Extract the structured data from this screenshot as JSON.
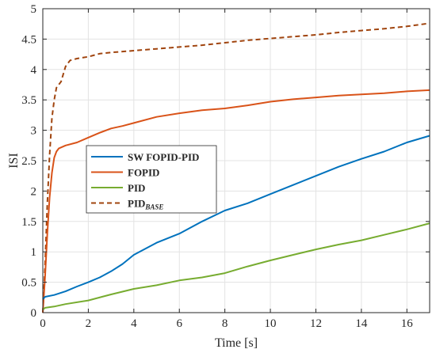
{
  "chart_data": {
    "type": "line",
    "title": "",
    "xlabel": "Time [s]",
    "ylabel": "ISI",
    "xlim": [
      0,
      17
    ],
    "ylim": [
      0,
      5
    ],
    "xticks": [
      0,
      2,
      4,
      6,
      8,
      10,
      12,
      14,
      16
    ],
    "yticks": [
      0,
      0.5,
      1,
      1.5,
      2,
      2.5,
      3,
      3.5,
      4,
      4.5,
      5
    ],
    "xtick_labels": [
      "0",
      "2",
      "4",
      "6",
      "8",
      "10",
      "12",
      "14",
      "16"
    ],
    "ytick_labels": [
      "0",
      "0.5",
      "1",
      "1.5",
      "2",
      "2.5",
      "3",
      "3.5",
      "4",
      "4.5",
      "5"
    ],
    "grid": true,
    "legend_position": "center-left",
    "series": [
      {
        "name": "SW FOPID-PID",
        "color": "#0072BD",
        "dash": "solid",
        "x": [
          0,
          0.1,
          0.5,
          1,
          1.5,
          2,
          2.5,
          3,
          3.5,
          4,
          5,
          6,
          7,
          8,
          9,
          10,
          11,
          12,
          13,
          14,
          15,
          16,
          17
        ],
        "y": [
          0.22,
          0.26,
          0.29,
          0.35,
          0.43,
          0.5,
          0.58,
          0.68,
          0.8,
          0.95,
          1.15,
          1.3,
          1.5,
          1.68,
          1.8,
          1.95,
          2.1,
          2.25,
          2.4,
          2.53,
          2.65,
          2.8,
          2.91
        ]
      },
      {
        "name": "FOPID",
        "color": "#D95319",
        "dash": "solid",
        "x": [
          0,
          0.1,
          0.2,
          0.3,
          0.4,
          0.5,
          0.6,
          0.7,
          1,
          1.5,
          2,
          2.5,
          3,
          3.5,
          4,
          5,
          6,
          7,
          8,
          9,
          10,
          11,
          12,
          13,
          14,
          15,
          16,
          17
        ],
        "y": [
          0,
          0.6,
          1.3,
          1.9,
          2.3,
          2.55,
          2.65,
          2.7,
          2.75,
          2.8,
          2.88,
          2.96,
          3.03,
          3.07,
          3.12,
          3.22,
          3.28,
          3.33,
          3.36,
          3.41,
          3.47,
          3.51,
          3.54,
          3.57,
          3.59,
          3.61,
          3.64,
          3.66
        ]
      },
      {
        "name": "PID",
        "color": "#77AC30",
        "dash": "solid",
        "x": [
          0,
          0.1,
          0.5,
          1,
          2,
          3,
          4,
          5,
          6,
          7,
          8,
          9,
          10,
          11,
          12,
          13,
          14,
          15,
          16,
          17
        ],
        "y": [
          0.05,
          0.08,
          0.1,
          0.14,
          0.2,
          0.3,
          0.39,
          0.45,
          0.53,
          0.58,
          0.65,
          0.76,
          0.86,
          0.95,
          1.04,
          1.12,
          1.19,
          1.28,
          1.37,
          1.47
        ]
      },
      {
        "name": "PID",
        "name_sub": "BASE",
        "color": "#A0440E",
        "dash": "dashed",
        "x": [
          0,
          0.1,
          0.2,
          0.3,
          0.4,
          0.5,
          0.6,
          0.8,
          1,
          1.2,
          1.5,
          2,
          2.5,
          3,
          4,
          5,
          6,
          7,
          8,
          9,
          10,
          11,
          12,
          13,
          14,
          15,
          16,
          17
        ],
        "y": [
          0,
          0.8,
          1.8,
          2.6,
          3.2,
          3.5,
          3.7,
          3.8,
          4.05,
          4.15,
          4.18,
          4.21,
          4.26,
          4.28,
          4.31,
          4.34,
          4.37,
          4.4,
          4.44,
          4.48,
          4.51,
          4.54,
          4.57,
          4.61,
          4.64,
          4.67,
          4.71,
          4.76
        ]
      }
    ]
  }
}
